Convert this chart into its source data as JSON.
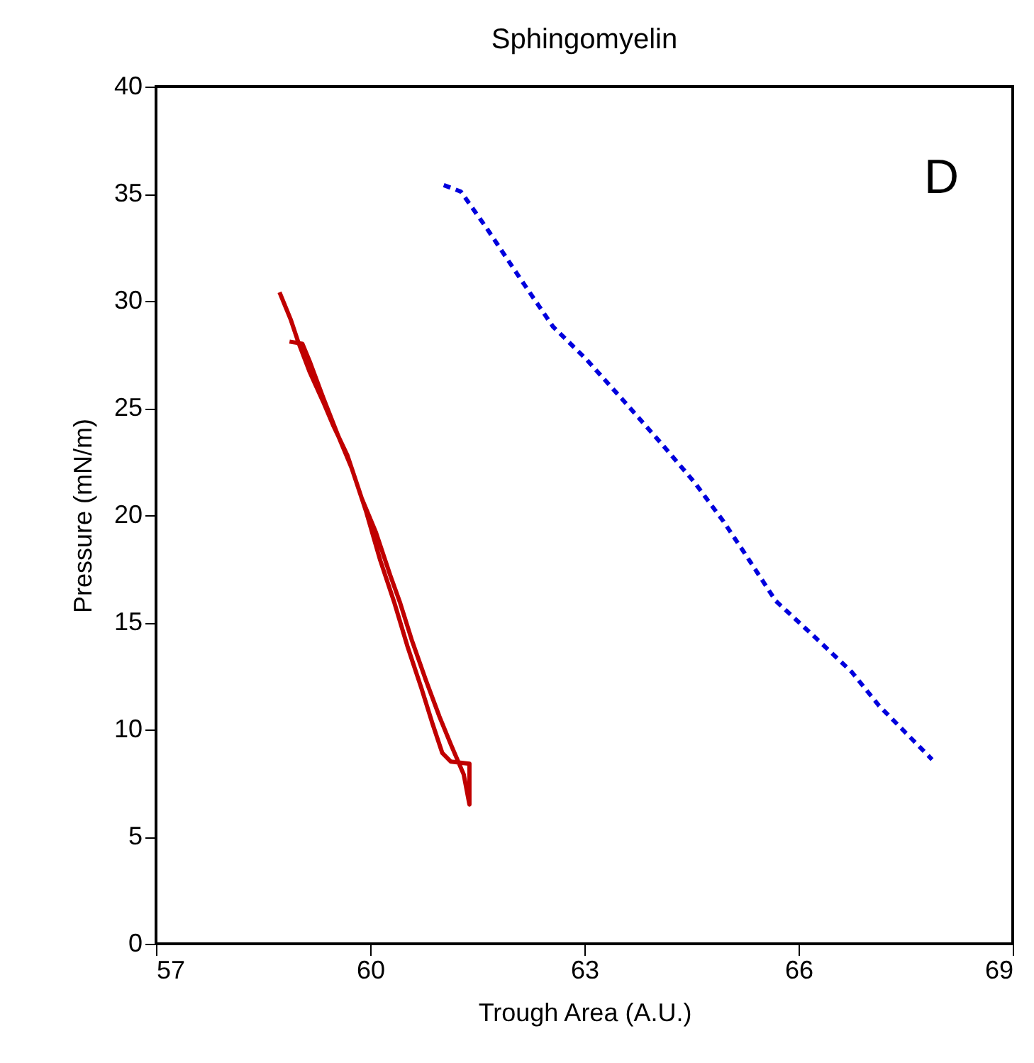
{
  "chart_data": {
    "type": "line",
    "title": "Sphingomyelin",
    "xlabel": "Trough Area (A.U.)",
    "ylabel": "Pressure (mN/m)",
    "annotations": [
      "D"
    ],
    "xlim": [
      57,
      69
    ],
    "xticks": [
      57,
      60,
      63,
      66,
      69
    ],
    "ylim": [
      0,
      40
    ],
    "yticks": [
      0,
      5,
      10,
      15,
      20,
      25,
      30,
      35,
      40
    ],
    "series": [
      {
        "color": "#c00000",
        "line_style": "solid",
        "x": [
          58.73,
          58.89,
          58.99,
          59.15,
          59.34,
          59.48,
          59.68,
          59.88,
          60.08,
          60.28,
          60.42,
          60.58,
          60.78,
          60.97,
          61.13,
          61.31,
          61.39,
          61.39,
          61.13,
          61.01,
          60.87,
          60.72,
          60.52,
          60.34,
          60.14,
          59.94,
          59.74,
          59.54,
          59.34,
          59.15,
          59.05,
          58.87
        ],
        "values": [
          30.4,
          29.1,
          28.1,
          26.7,
          25.3,
          24.2,
          22.8,
          20.8,
          19.2,
          17.2,
          15.9,
          14.2,
          12.3,
          10.6,
          9.3,
          7.9,
          6.5,
          8.4,
          8.5,
          8.9,
          10.3,
          11.9,
          13.9,
          15.9,
          17.9,
          20.2,
          22.2,
          23.8,
          25.5,
          27.2,
          28.0,
          28.1
        ]
      },
      {
        "color": "#0000dd",
        "line_style": "dashed",
        "x": [
          61.03,
          61.27,
          61.63,
          62.11,
          62.56,
          63.02,
          63.56,
          64.09,
          64.55,
          64.95,
          65.29,
          65.68,
          66.2,
          66.74,
          67.13,
          67.87
        ],
        "values": [
          35.4,
          35.1,
          33.4,
          31.0,
          28.8,
          27.3,
          25.3,
          23.3,
          21.5,
          19.7,
          18.0,
          16.0,
          14.4,
          12.7,
          11.1,
          8.6
        ]
      }
    ]
  }
}
